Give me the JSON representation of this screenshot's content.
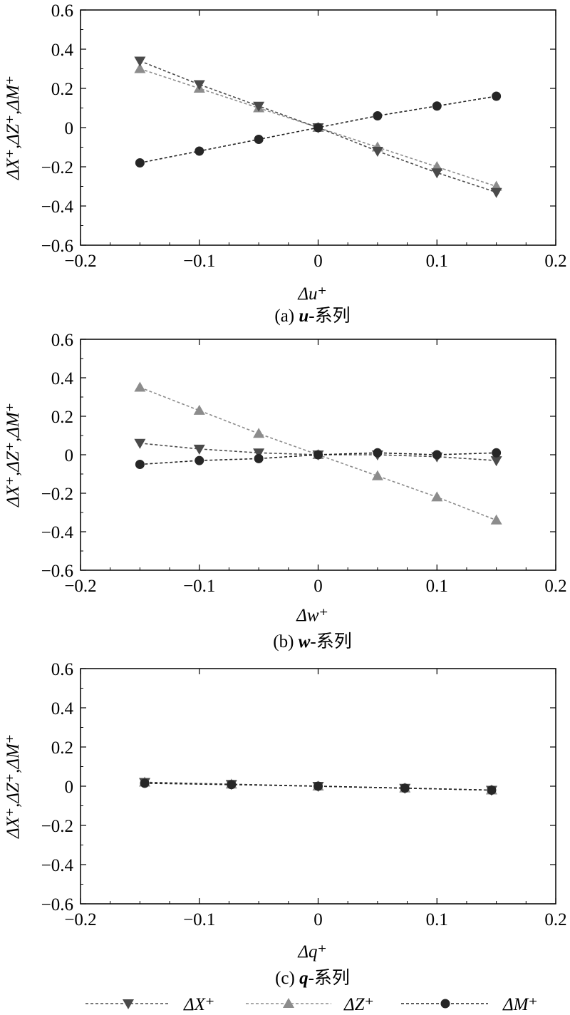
{
  "figure": {
    "legend_position": "bottom"
  },
  "colors": {
    "dX": "#4a4a4a",
    "dZ": "#8c8c8c",
    "dM": "#262626",
    "axis": "#000000"
  },
  "legend": {
    "items": [
      {
        "key": "dX",
        "label": "ΔX⁺",
        "marker": "triangle-down"
      },
      {
        "key": "dZ",
        "label": "ΔZ⁺",
        "marker": "triangle-up"
      },
      {
        "key": "dM",
        "label": "ΔM⁺",
        "marker": "circle"
      }
    ]
  },
  "chart_data": [
    {
      "type": "line",
      "caption_prefix": "(a) ",
      "caption_var": "u",
      "caption_suffix": "-系列",
      "xlabel": "Δu⁺",
      "ylabel": "ΔX⁺,ΔZ⁺,ΔM⁺",
      "xlim": [
        -0.2,
        0.2
      ],
      "ylim": [
        -0.6,
        0.6
      ],
      "xticks": [
        -0.2,
        -0.1,
        0,
        0.1,
        0.2
      ],
      "xtick_labels": [
        "−0.2",
        "−0.1",
        "0",
        "0.1",
        "0.2"
      ],
      "yticks": [
        -0.6,
        -0.4,
        -0.2,
        0,
        0.2,
        0.4,
        0.6
      ],
      "ytick_labels": [
        "−0.6",
        "−0.4",
        "−0.2",
        "0",
        "0.2",
        "0.4",
        "0.6"
      ],
      "grid": false,
      "x": [
        -0.15,
        -0.1,
        -0.05,
        0,
        0.05,
        0.1,
        0.15
      ],
      "series": [
        {
          "name": "ΔX⁺",
          "key": "dX",
          "values": [
            0.34,
            0.22,
            0.11,
            0.0,
            -0.12,
            -0.23,
            -0.33
          ]
        },
        {
          "name": "ΔZ⁺",
          "key": "dZ",
          "values": [
            0.3,
            0.2,
            0.1,
            0.0,
            -0.1,
            -0.2,
            -0.3
          ]
        },
        {
          "name": "ΔM⁺",
          "key": "dM",
          "values": [
            -0.18,
            -0.12,
            -0.06,
            0.0,
            0.06,
            0.11,
            0.16
          ]
        }
      ]
    },
    {
      "type": "line",
      "caption_prefix": "(b) ",
      "caption_var": "w",
      "caption_suffix": "-系列",
      "xlabel": "Δw⁺",
      "ylabel": "ΔX⁺,ΔZ⁺,ΔM⁺",
      "xlim": [
        -0.2,
        0.2
      ],
      "ylim": [
        -0.6,
        0.6
      ],
      "xticks": [
        -0.2,
        -0.1,
        0,
        0.1,
        0.2
      ],
      "xtick_labels": [
        "−0.2",
        "−0.1",
        "0",
        "0.1",
        "0.2"
      ],
      "yticks": [
        -0.6,
        -0.4,
        -0.2,
        0,
        0.2,
        0.4,
        0.6
      ],
      "ytick_labels": [
        "−0.6",
        "−0.4",
        "−0.2",
        "0",
        "0.2",
        "0.4",
        "0.6"
      ],
      "grid": false,
      "x": [
        -0.15,
        -0.1,
        -0.05,
        0,
        0.05,
        0.1,
        0.15
      ],
      "series": [
        {
          "name": "ΔX⁺",
          "key": "dX",
          "values": [
            0.06,
            0.03,
            0.01,
            0.0,
            0.0,
            -0.01,
            -0.03
          ]
        },
        {
          "name": "ΔZ⁺",
          "key": "dZ",
          "values": [
            0.35,
            0.23,
            0.11,
            0.0,
            -0.11,
            -0.22,
            -0.34
          ]
        },
        {
          "name": "ΔM⁺",
          "key": "dM",
          "values": [
            -0.05,
            -0.03,
            -0.02,
            0.0,
            0.01,
            0.0,
            0.01
          ]
        }
      ]
    },
    {
      "type": "line",
      "caption_prefix": "(c) ",
      "caption_var": "q",
      "caption_suffix": "-系列",
      "xlabel": "Δq⁺",
      "ylabel": "ΔX⁺,ΔZ⁺,ΔM⁺",
      "xlim": [
        -0.2,
        0.2
      ],
      "ylim": [
        -0.6,
        0.6
      ],
      "xticks": [
        -0.2,
        -0.1,
        0,
        0.1,
        0.2
      ],
      "xtick_labels": [
        "−0.2",
        "−0.1",
        "0",
        "0.1",
        "0.2"
      ],
      "yticks": [
        -0.6,
        -0.4,
        -0.2,
        0,
        0.2,
        0.4,
        0.6
      ],
      "ytick_labels": [
        "−0.6",
        "−0.4",
        "−0.2",
        "0",
        "0.2",
        "0.4",
        "0.6"
      ],
      "grid": false,
      "x": [
        -0.146,
        -0.073,
        0,
        0.073,
        0.146
      ],
      "series": [
        {
          "name": "ΔX⁺",
          "key": "dX",
          "values": [
            0.02,
            0.01,
            0.0,
            -0.01,
            -0.02
          ]
        },
        {
          "name": "ΔZ⁺",
          "key": "dZ",
          "values": [
            0.02,
            0.01,
            0.0,
            -0.01,
            -0.02
          ]
        },
        {
          "name": "ΔM⁺",
          "key": "dM",
          "values": [
            0.015,
            0.008,
            0.0,
            -0.01,
            -0.02
          ]
        }
      ]
    }
  ]
}
